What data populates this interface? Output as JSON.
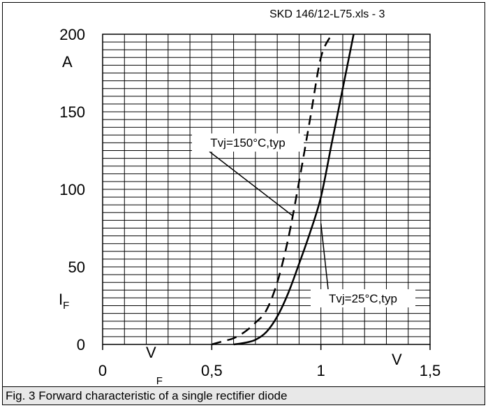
{
  "chart_data": {
    "type": "line",
    "file_ref": "SKD 146/12-L75.xls - 3",
    "xlim": [
      0,
      1.5
    ],
    "ylim": [
      0,
      200
    ],
    "x_ticks": [
      {
        "value": 0,
        "label": "0"
      },
      {
        "value": 0.5,
        "label": "0,5"
      },
      {
        "value": 1,
        "label": "1"
      },
      {
        "value": 1.5,
        "label": "1,5"
      }
    ],
    "y_ticks": [
      {
        "value": 0,
        "label": "0"
      },
      {
        "value": 50,
        "label": "50"
      },
      {
        "value": 100,
        "label": "100"
      },
      {
        "value": 150,
        "label": "150"
      },
      {
        "value": 200,
        "label": "200"
      }
    ],
    "x_unit": "V",
    "y_unit": "A",
    "xlabel": "VF",
    "ylabel": "IF",
    "grid": true,
    "series": [
      {
        "name": "Tvj=150°C,typ",
        "style": "dashed",
        "x": [
          0.5,
          0.55,
          0.6,
          0.65,
          0.7,
          0.75,
          0.8,
          0.85,
          0.9,
          0.95,
          1.0,
          1.05
        ],
        "y": [
          0,
          2,
          4,
          8,
          14,
          22,
          40,
          68,
          105,
          145,
          185,
          200
        ]
      },
      {
        "name": "Tvj=25°C,typ",
        "style": "solid",
        "x": [
          0.6,
          0.65,
          0.7,
          0.75,
          0.8,
          0.85,
          0.9,
          0.95,
          1.0,
          1.05,
          1.1,
          1.15
        ],
        "y": [
          0,
          1,
          3,
          8,
          18,
          33,
          52,
          72,
          95,
          130,
          165,
          200
        ]
      }
    ],
    "annotations": [
      {
        "text": "Tvj=150°C,typ",
        "series": 0,
        "point": [
          0.87,
          83
        ]
      },
      {
        "text": "Tvj=25°C,typ",
        "series": 1,
        "point": [
          1.0,
          78
        ]
      }
    ]
  },
  "caption": "Fig. 3 Forward characteristic of a single rectifier diode"
}
